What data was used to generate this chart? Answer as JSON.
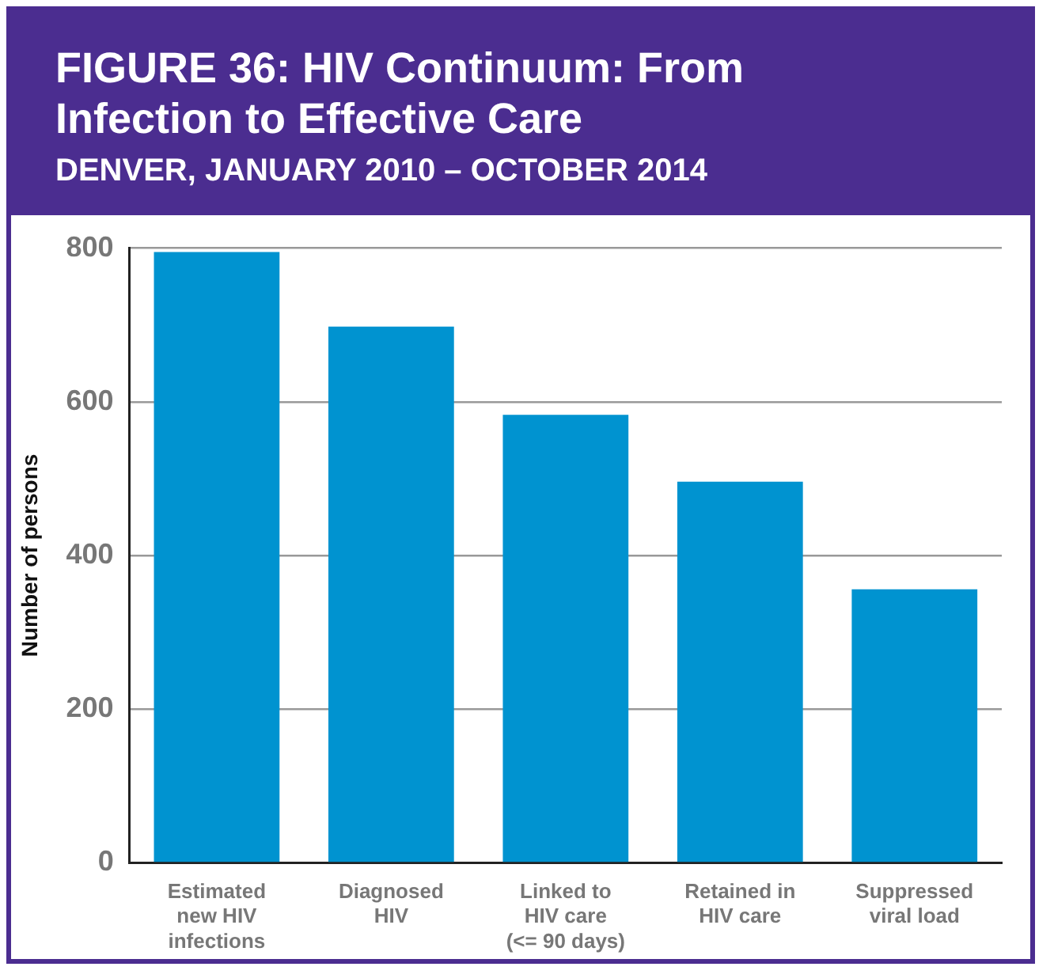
{
  "chart_data": {
    "type": "bar",
    "title": "FIGURE 36: HIV Continuum: From Infection to Effective Care",
    "subtitle": "DENVER, JANUARY 2010 – OCTOBER 2014",
    "ylabel": "Number of persons",
    "categories": [
      "Estimated\nnew HIV\ninfections",
      "Diagnosed\nHIV",
      "Linked to\nHIV care\n(<= 90 days)",
      "Retained in\nHIV care",
      "Suppressed\nviral load"
    ],
    "values": [
      795,
      698,
      583,
      496,
      356
    ],
    "color": "#0093d0",
    "ylim": [
      0,
      800
    ],
    "yticks": [
      0,
      200,
      400,
      600,
      800
    ],
    "grid": "y",
    "legend": false
  }
}
